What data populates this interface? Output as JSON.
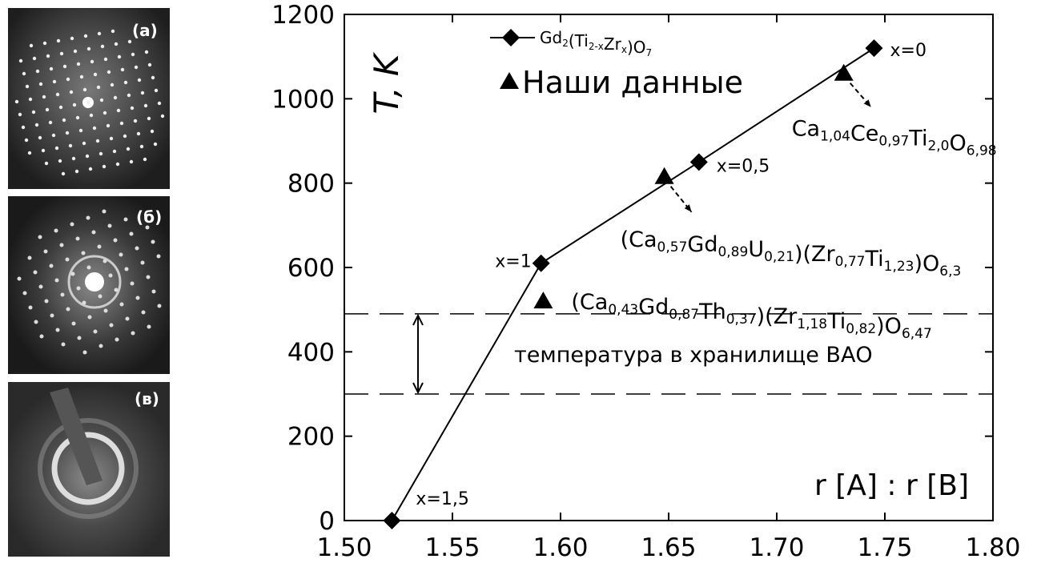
{
  "panels": {
    "labels": [
      "(a)",
      "(б)",
      "(в)"
    ]
  },
  "chart_data": {
    "type": "line",
    "y_label": "T, K",
    "x_label": "r [A] : r [B]",
    "xlim": [
      1.5,
      1.8
    ],
    "xticks": [
      {
        "value": 1.5,
        "label": "1.50"
      },
      1.55,
      {
        "value": 1.6,
        "label": "1.60"
      },
      1.65,
      {
        "value": 1.7,
        "label": "1.70"
      },
      1.75,
      {
        "value": 1.8,
        "label": "1.80"
      }
    ],
    "ylim": [
      0,
      1200
    ],
    "yticks": [
      0,
      200,
      400,
      600,
      800,
      1000,
      1200
    ],
    "series": [
      {
        "name": [
          [
            "Gd",
            "2"
          ],
          [
            "(Ti",
            "2-x"
          ],
          [
            "Zr",
            "x"
          ],
          [
            ")O",
            "7"
          ]
        ],
        "marker": "diamond",
        "color": "#000000",
        "line": true,
        "x": [
          1.522,
          1.591,
          1.664,
          1.745
        ],
        "values": [
          0,
          610,
          850,
          1120
        ],
        "point_labels": [
          "x=1,5",
          "x=1",
          "x=0,5",
          "x=0"
        ]
      },
      {
        "name": "Наши данные",
        "marker": "triangle",
        "color": "#000000",
        "line": false,
        "x": [
          1.592,
          1.648,
          1.731
        ],
        "values": [
          520,
          815,
          1060
        ],
        "point_labels": [
          [
            [
              "(Ca",
              "0,43"
            ],
            [
              "Gd",
              "0,87"
            ],
            [
              "Th",
              "0,37"
            ],
            [
              ")(Zr",
              "1,18"
            ],
            [
              "Ti",
              "0,82"
            ],
            [
              ")O",
              "6,47"
            ]
          ],
          [
            [
              "(Ca",
              "0,57"
            ],
            [
              "Gd",
              "0,89"
            ],
            [
              "U",
              "0,21"
            ],
            [
              ")(Zr",
              "0,77"
            ],
            [
              "Ti",
              "1,23"
            ],
            [
              ")O",
              "6,3"
            ]
          ],
          [
            [
              "Ca",
              "1,04"
            ],
            [
              "Ce",
              "0,97"
            ],
            [
              "Ti",
              "2,0"
            ],
            [
              "O",
              "6,98"
            ]
          ]
        ]
      }
    ],
    "reference_lines": [
      {
        "value": 490
      },
      {
        "value": 300
      }
    ],
    "reference_label": "температура в хранилище ВАО"
  }
}
